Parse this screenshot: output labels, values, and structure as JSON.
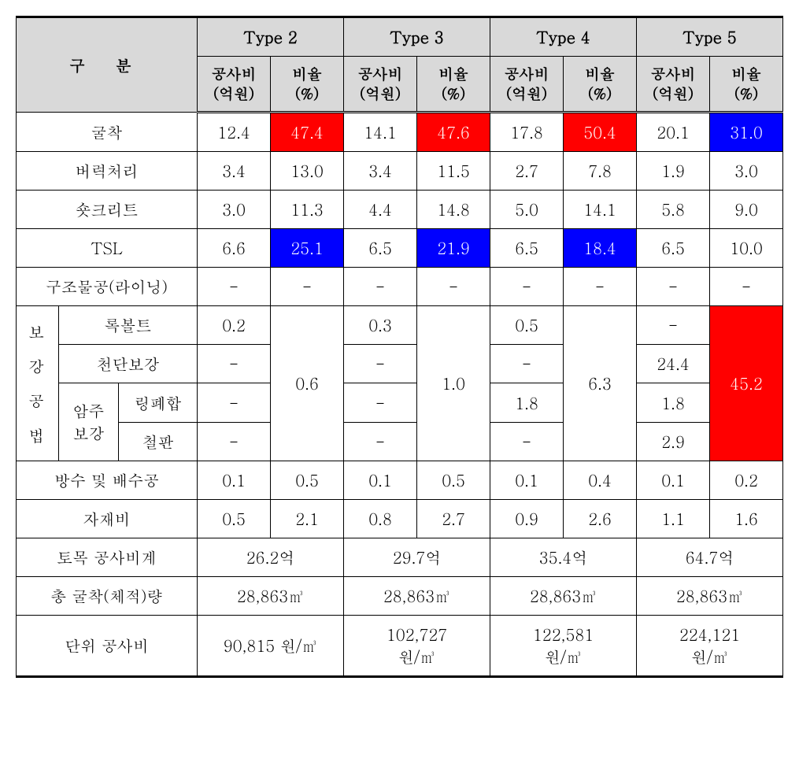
{
  "headers": {
    "category": "구 분",
    "types": [
      "Type 2",
      "Type 3",
      "Type 4",
      "Type 5"
    ],
    "cost": "공사비\n(억원)",
    "rate": "비율\n(%)"
  },
  "rows": {
    "excavation": {
      "label": "굴착",
      "t2c": "12.4",
      "t2r": "47.4",
      "t3c": "14.1",
      "t3r": "47.6",
      "t4c": "17.8",
      "t4r": "50.4",
      "t5c": "20.1",
      "t5r": "31.0"
    },
    "muck": {
      "label": "버력처리",
      "t2c": "3.4",
      "t2r": "13.0",
      "t3c": "3.4",
      "t3r": "11.5",
      "t4c": "2.7",
      "t4r": "7.8",
      "t5c": "1.9",
      "t5r": "3.0"
    },
    "shotcrete": {
      "label": "숏크리트",
      "t2c": "3.0",
      "t2r": "11.3",
      "t3c": "4.4",
      "t3r": "14.8",
      "t4c": "5.0",
      "t4r": "14.1",
      "t5c": "5.8",
      "t5r": "9.0"
    },
    "tsl": {
      "label": "TSL",
      "t2c": "6.6",
      "t2r": "25.1",
      "t3c": "6.5",
      "t3r": "21.9",
      "t4c": "6.5",
      "t4r": "18.4",
      "t5c": "6.5",
      "t5r": "10.0"
    },
    "lining": {
      "label": "구조물공(라이닝)",
      "t2c": "-",
      "t2r": "-",
      "t3c": "-",
      "t3r": "-",
      "t4c": "-",
      "t4r": "-",
      "t5c": "-",
      "t5r": "-"
    },
    "reinforce_label": "보강공법",
    "rockbolt": {
      "label": "록볼트",
      "t2c": "0.2",
      "t3c": "0.3",
      "t4c": "0.5",
      "t5c": "-"
    },
    "crown": {
      "label": "천단보강",
      "t2c": "-",
      "t3c": "-",
      "t4c": "-",
      "t5c": "24.4"
    },
    "amju_label": "암주\n보강",
    "ring": {
      "label": "링폐합",
      "t2c": "-",
      "t3c": "-",
      "t4c": "1.8",
      "t5c": "1.8"
    },
    "steel": {
      "label": "철판",
      "t2c": "-",
      "t3c": "-",
      "t4c": "-",
      "t5c": "2.9"
    },
    "reinforce_rate": {
      "t2": "0.6",
      "t3": "1.0",
      "t4": "6.3",
      "t5": "45.2"
    },
    "waterproof": {
      "label": "방수 및 배수공",
      "t2c": "0.1",
      "t2r": "0.5",
      "t3c": "0.1",
      "t3r": "0.5",
      "t4c": "0.1",
      "t4r": "0.4",
      "t5c": "0.1",
      "t5r": "0.2"
    },
    "material": {
      "label": "자재비",
      "t2c": "0.5",
      "t2r": "2.1",
      "t3c": "0.8",
      "t3r": "2.7",
      "t4c": "0.9",
      "t4r": "2.6",
      "t5c": "1.1",
      "t5r": "1.6"
    },
    "total": {
      "label": "토목 공사비계",
      "t2": "26.2억",
      "t3": "29.7억",
      "t4": "35.4억",
      "t5": "64.7억"
    },
    "volume": {
      "label": "총 굴착(체적)량",
      "t2": "28,863㎥",
      "t3": "28,863㎥",
      "t4": "28,863㎥",
      "t5": "28,863㎥"
    },
    "unit": {
      "label": "단위 공사비",
      "t2": "90,815 원/㎥",
      "t3": "102,727\n원/㎥",
      "t4": "122,581\n원/㎥",
      "t5": "224,121\n원/㎥"
    }
  },
  "highlights": {
    "red": [
      "excavation.t2r",
      "excavation.t3r",
      "excavation.t4r",
      "reinforce_rate.t5"
    ],
    "blue": [
      "excavation.t5r",
      "tsl.t2r",
      "tsl.t3r",
      "tsl.t4r"
    ]
  },
  "colors": {
    "header_bg": "#d9d9d9",
    "red": "#ff0000",
    "blue": "#0000ff",
    "text": "#000000",
    "border": "#000000"
  },
  "font": {
    "family": "Batang, serif",
    "base_size": 20
  }
}
